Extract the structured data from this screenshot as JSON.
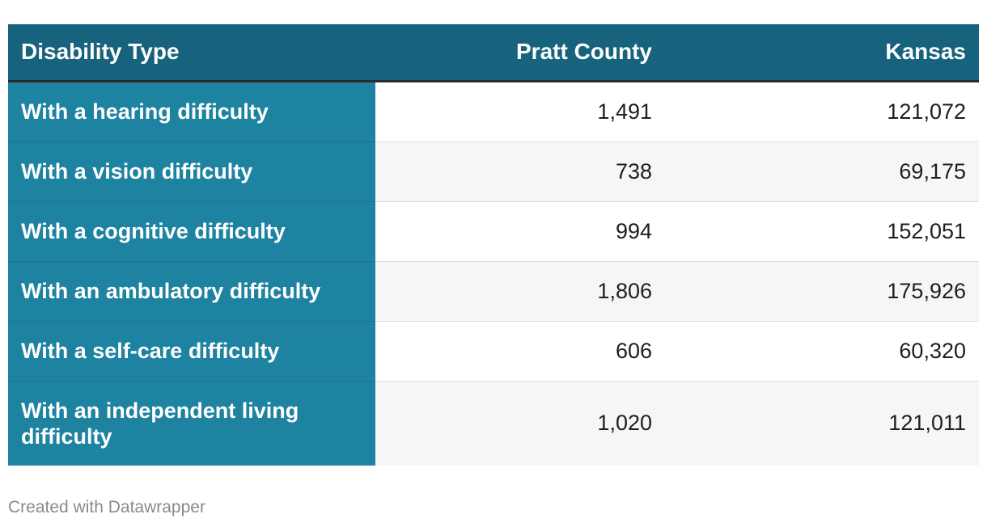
{
  "chart_data": {
    "type": "table",
    "columns": [
      "Disability Type",
      "Pratt County",
      "Kansas"
    ],
    "rows": [
      {
        "type": "With a hearing difficulty",
        "pratt": "1,491",
        "kansas": "121,072"
      },
      {
        "type": "With a vision difficulty",
        "pratt": "738",
        "kansas": "69,175"
      },
      {
        "type": "With a cognitive difficulty",
        "pratt": "994",
        "kansas": "152,051"
      },
      {
        "type": "With an ambulatory difficulty",
        "pratt": "1,806",
        "kansas": "175,926"
      },
      {
        "type": "With a self-care difficulty",
        "pratt": "606",
        "kansas": "60,320"
      },
      {
        "type": "With an independent living difficulty",
        "pratt": "1,020",
        "kansas": "121,011"
      }
    ]
  },
  "footer": "Created with Datawrapper",
  "colors": {
    "header_bg": "#17627c",
    "label_column_bg": "#1e82a1",
    "header_rule": "#2b2b2b",
    "stripe": "#f6f6f6"
  }
}
